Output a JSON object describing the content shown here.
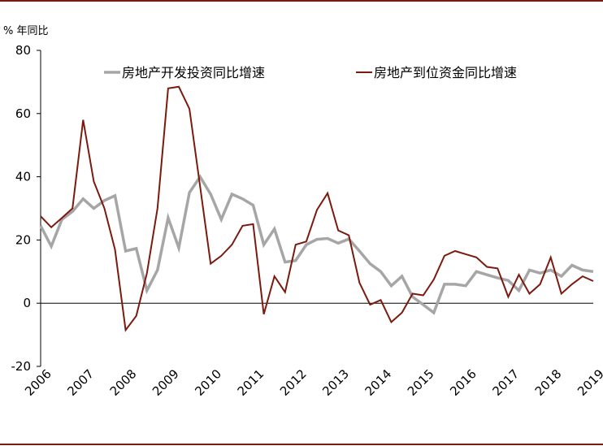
{
  "unit_label": "% 年同比",
  "chart_data": {
    "type": "line",
    "title": "",
    "xlabel": "",
    "ylabel": "% 年同比",
    "ylim": [
      -20,
      80
    ],
    "yticks": [
      -20,
      0,
      20,
      40,
      60,
      80
    ],
    "xticks": [
      "2006",
      "2007",
      "2008",
      "2009",
      "2010",
      "2011",
      "2012",
      "2013",
      "2014",
      "2015",
      "2016",
      "2017",
      "2018",
      "2019"
    ],
    "xlim": [
      2006.0,
      2019.0
    ],
    "grid": false,
    "legend_position": "top",
    "colors": {
      "investment": "#a6a6a6",
      "funds": "#7b1a0f",
      "axis": "#000000",
      "rule": "#7a1a14"
    },
    "series": [
      {
        "name": "房地产开发投资同比增速",
        "color": "#a6a6a6",
        "points": [
          [
            2006.0,
            24.5
          ],
          [
            2006.25,
            18.0
          ],
          [
            2006.5,
            26.5
          ],
          [
            2006.75,
            29.0
          ],
          [
            2007.0,
            33.0
          ],
          [
            2007.25,
            30.0
          ],
          [
            2007.5,
            32.5
          ],
          [
            2007.75,
            34.0
          ],
          [
            2008.0,
            16.5
          ],
          [
            2008.25,
            17.3
          ],
          [
            2008.5,
            4.0
          ],
          [
            2008.75,
            10.5
          ],
          [
            2009.0,
            27.0
          ],
          [
            2009.25,
            17.5
          ],
          [
            2009.5,
            35.0
          ],
          [
            2009.75,
            40.0
          ],
          [
            2010.0,
            34.5
          ],
          [
            2010.25,
            26.5
          ],
          [
            2010.5,
            34.5
          ],
          [
            2010.75,
            33.0
          ],
          [
            2011.0,
            31.0
          ],
          [
            2011.25,
            18.5
          ],
          [
            2011.5,
            23.5
          ],
          [
            2011.75,
            13.0
          ],
          [
            2012.0,
            13.5
          ],
          [
            2012.25,
            18.5
          ],
          [
            2012.5,
            20.2
          ],
          [
            2012.75,
            20.5
          ],
          [
            2013.0,
            19.0
          ],
          [
            2013.25,
            20.3
          ],
          [
            2013.5,
            16.5
          ],
          [
            2013.75,
            12.5
          ],
          [
            2014.0,
            10.0
          ],
          [
            2014.25,
            5.5
          ],
          [
            2014.5,
            8.5
          ],
          [
            2014.75,
            2.0
          ],
          [
            2015.0,
            -0.5
          ],
          [
            2015.25,
            -3.0
          ],
          [
            2015.5,
            6.0
          ],
          [
            2015.75,
            6.0
          ],
          [
            2016.0,
            5.5
          ],
          [
            2016.25,
            10.0
          ],
          [
            2016.5,
            9.0
          ],
          [
            2016.75,
            8.0
          ],
          [
            2017.0,
            7.2
          ],
          [
            2017.25,
            4.0
          ],
          [
            2017.5,
            10.5
          ],
          [
            2017.75,
            9.5
          ],
          [
            2018.0,
            10.5
          ],
          [
            2018.25,
            8.5
          ],
          [
            2018.5,
            12.0
          ],
          [
            2018.75,
            10.5
          ],
          [
            2019.0,
            10.0
          ]
        ]
      },
      {
        "name": "房地产到位资金同比增速",
        "color": "#7b1a0f",
        "points": [
          [
            2006.0,
            27.5
          ],
          [
            2006.25,
            24.0
          ],
          [
            2006.5,
            27.0
          ],
          [
            2006.75,
            30.0
          ],
          [
            2007.0,
            58.0
          ],
          [
            2007.25,
            38.5
          ],
          [
            2007.5,
            30.0
          ],
          [
            2007.75,
            17.0
          ],
          [
            2008.0,
            -8.5
          ],
          [
            2008.25,
            -4.0
          ],
          [
            2008.5,
            9.5
          ],
          [
            2008.75,
            30.0
          ],
          [
            2009.0,
            68.0
          ],
          [
            2009.25,
            68.5
          ],
          [
            2009.5,
            61.5
          ],
          [
            2009.75,
            37.0
          ],
          [
            2010.0,
            12.5
          ],
          [
            2010.25,
            15.0
          ],
          [
            2010.5,
            18.5
          ],
          [
            2010.75,
            24.5
          ],
          [
            2011.0,
            25.0
          ],
          [
            2011.25,
            -3.5
          ],
          [
            2011.5,
            8.5
          ],
          [
            2011.75,
            3.5
          ],
          [
            2012.0,
            18.5
          ],
          [
            2012.25,
            19.5
          ],
          [
            2012.5,
            29.5
          ],
          [
            2012.75,
            34.8
          ],
          [
            2013.0,
            23.0
          ],
          [
            2013.25,
            21.5
          ],
          [
            2013.5,
            6.5
          ],
          [
            2013.75,
            -0.5
          ],
          [
            2014.0,
            1.0
          ],
          [
            2014.25,
            -6.0
          ],
          [
            2014.5,
            -3.0
          ],
          [
            2014.75,
            3.0
          ],
          [
            2015.0,
            2.5
          ],
          [
            2015.25,
            7.5
          ],
          [
            2015.5,
            15.0
          ],
          [
            2015.75,
            16.5
          ],
          [
            2016.0,
            15.5
          ],
          [
            2016.25,
            14.5
          ],
          [
            2016.5,
            11.5
          ],
          [
            2016.75,
            11.0
          ],
          [
            2017.0,
            2.0
          ],
          [
            2017.25,
            9.0
          ],
          [
            2017.5,
            3.0
          ],
          [
            2017.75,
            6.0
          ],
          [
            2018.0,
            14.5
          ],
          [
            2018.25,
            3.0
          ],
          [
            2018.5,
            6.0
          ],
          [
            2018.75,
            8.5
          ],
          [
            2019.0,
            7.0
          ]
        ]
      }
    ]
  }
}
